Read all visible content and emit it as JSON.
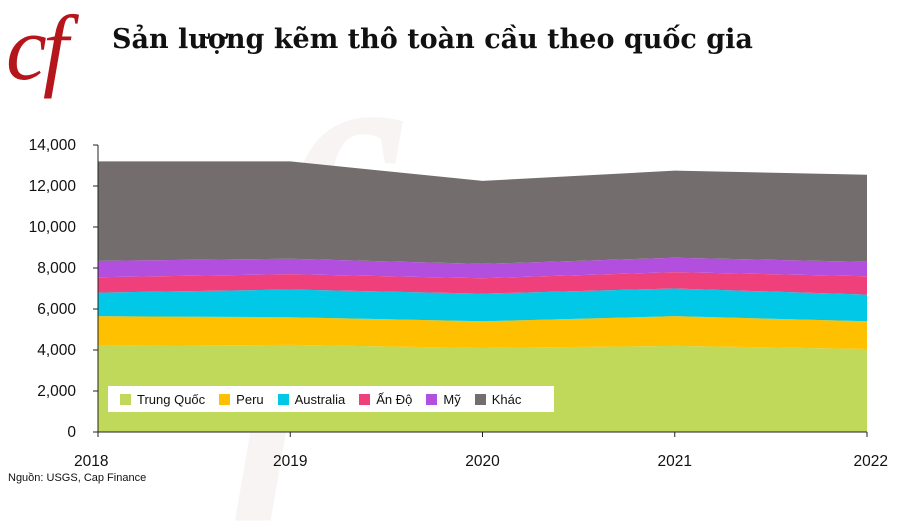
{
  "header": {
    "logo_text": "cf",
    "title": "Sản lượng kẽm thô toàn cầu theo quốc gia"
  },
  "source": "Nguồn: USGS, Cap Finance",
  "colors": {
    "Trung Quốc": "#c0d95a",
    "Peru": "#ffc000",
    "Australia": "#00c8e6",
    "Ấn Độ": "#f0407c",
    "Mỹ": "#b34fde",
    "Khác": "#736d6d",
    "logo": "#b5161b"
  },
  "chart_data": {
    "type": "area",
    "stacked": true,
    "x": [
      "2018",
      "2019",
      "2020",
      "2021",
      "2022"
    ],
    "ylim": [
      0,
      14000
    ],
    "yticks": [
      "0",
      "2,000",
      "4,000",
      "6,000",
      "8,000",
      "10,000",
      "12,000",
      "14,000"
    ],
    "legend_position": "bottom-left",
    "grid": false,
    "series": [
      {
        "name": "Trung Quốc",
        "values": [
          4200,
          4250,
          4100,
          4200,
          4050
        ]
      },
      {
        "name": "Peru",
        "values": [
          1450,
          1350,
          1300,
          1450,
          1350
        ]
      },
      {
        "name": "Australia",
        "values": [
          1150,
          1350,
          1350,
          1350,
          1300
        ]
      },
      {
        "name": "Ấn Độ",
        "values": [
          750,
          750,
          750,
          800,
          900
        ]
      },
      {
        "name": "Mỹ",
        "values": [
          800,
          750,
          700,
          700,
          700
        ]
      },
      {
        "name": "Khác",
        "values": [
          4850,
          4750,
          4050,
          4250,
          4250
        ]
      }
    ]
  }
}
